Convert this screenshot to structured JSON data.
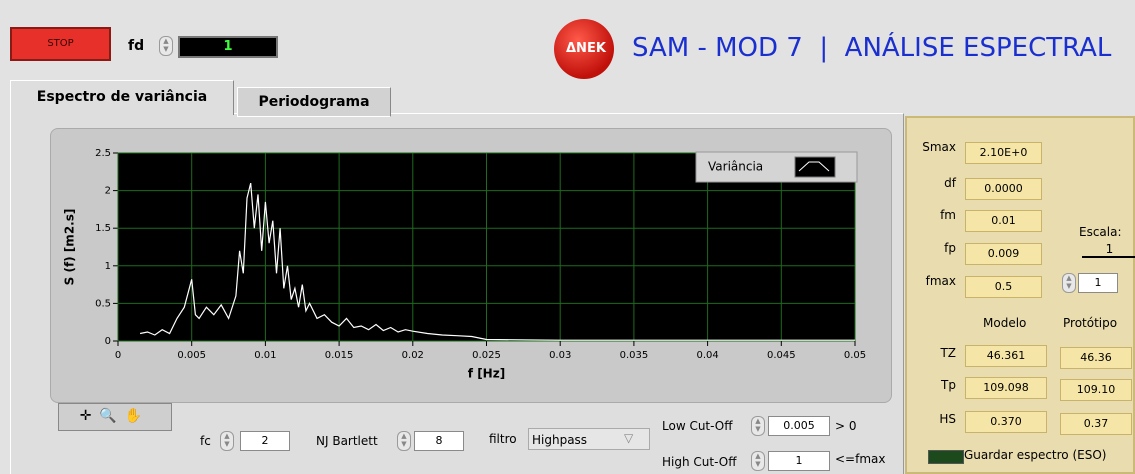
{
  "controls": {
    "stop": "STOP",
    "fd_label": "fd",
    "fd_value": "1"
  },
  "header": {
    "logo": "ΔNEK",
    "title": "SAM - MOD 7  |  ANÁLISE ESPECTRAL"
  },
  "tabs": [
    "Espectro de variância",
    "Periodograma"
  ],
  "chart_data": {
    "type": "line",
    "xlabel": "f [Hz]",
    "ylabel": "S (f) [m2.s]",
    "x": [
      0.0015,
      0.002,
      0.0025,
      0.003,
      0.0035,
      0.004,
      0.0045,
      0.005,
      0.00525,
      0.0055,
      0.006,
      0.0065,
      0.007,
      0.0075,
      0.008,
      0.00825,
      0.0085,
      0.00875,
      0.009,
      0.00925,
      0.0095,
      0.00975,
      0.01,
      0.01025,
      0.0105,
      0.01075,
      0.011,
      0.01125,
      0.0115,
      0.01175,
      0.012,
      0.01225,
      0.0125,
      0.01275,
      0.013,
      0.0135,
      0.014,
      0.0145,
      0.015,
      0.0155,
      0.016,
      0.0165,
      0.017,
      0.0175,
      0.018,
      0.0185,
      0.019,
      0.0195,
      0.02,
      0.021,
      0.022,
      0.023,
      0.024,
      0.025,
      0.03,
      0.035,
      0.04,
      0.045,
      0.05
    ],
    "series": [
      {
        "name": "Variância",
        "color": "#ffffff",
        "values": [
          0.1,
          0.12,
          0.08,
          0.15,
          0.1,
          0.3,
          0.45,
          0.82,
          0.35,
          0.3,
          0.45,
          0.35,
          0.48,
          0.3,
          0.6,
          1.2,
          0.9,
          1.9,
          2.1,
          1.5,
          1.95,
          1.2,
          1.85,
          1.3,
          1.6,
          0.9,
          1.5,
          0.7,
          1.0,
          0.55,
          0.7,
          0.45,
          0.75,
          0.4,
          0.5,
          0.3,
          0.35,
          0.25,
          0.2,
          0.3,
          0.18,
          0.2,
          0.15,
          0.22,
          0.14,
          0.18,
          0.12,
          0.15,
          0.13,
          0.1,
          0.08,
          0.07,
          0.06,
          0.02,
          0.01,
          0.01,
          0.01,
          0.01,
          0.01
        ]
      }
    ],
    "xlim": [
      0,
      0.05
    ],
    "ylim": [
      0,
      2.5
    ],
    "xticks": [
      0,
      0.005,
      0.01,
      0.015,
      0.02,
      0.025,
      0.03,
      0.035,
      0.04,
      0.045,
      0.05
    ],
    "yticks": [
      0,
      0.5,
      1,
      1.5,
      2,
      2.5
    ],
    "grid": true,
    "grid_color": "#1e6a1e",
    "background": "#000000",
    "legend": "top-right"
  },
  "filters": {
    "fc_label": "fc",
    "fc_value": "2",
    "nj_label": "NJ Bartlett",
    "nj_value": "8",
    "filtro_label": "filtro",
    "filtro_value": "Highpass",
    "low_label": "Low Cut-Off",
    "low_value": "0.005",
    "low_note": "> 0",
    "high_label": "High Cut-Off",
    "high_value": "1",
    "high_note": "<=fmax"
  },
  "results": {
    "params": [
      [
        "Smax",
        "2.10E+0"
      ],
      [
        "df",
        "0.0000"
      ],
      [
        "fm",
        "0.01"
      ],
      [
        "fp",
        "0.009"
      ],
      [
        "fmax",
        "0.5"
      ]
    ],
    "escala_label": "Escala:",
    "escala_indicator": "1",
    "escala_value": "1",
    "columns": [
      "Modelo",
      "Protótipo"
    ],
    "rows": [
      [
        "TZ",
        "46.361",
        "46.36"
      ],
      [
        "Tp",
        "109.098",
        "109.10"
      ],
      [
        "HS",
        "0.370",
        "0.37"
      ]
    ],
    "save_label": "Guardar espectro (ESO)"
  }
}
